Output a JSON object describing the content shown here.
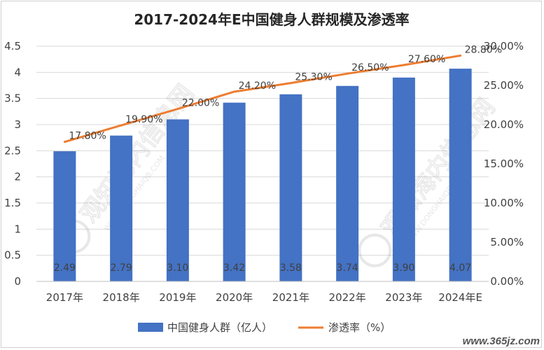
{
  "chart_data": {
    "type": "bar+line",
    "title": "2017-2024年E中国健身人群规模及渗透率",
    "categories": [
      "2017年",
      "2018年",
      "2019年",
      "2020年",
      "2021年",
      "2022年",
      "2023年",
      "2024年E"
    ],
    "series": [
      {
        "name": "中国健身人群（亿人）",
        "type": "bar",
        "axis": "left",
        "values": [
          2.49,
          2.79,
          3.1,
          3.42,
          3.58,
          3.74,
          3.9,
          4.07
        ],
        "labels": [
          "2.49",
          "2.79",
          "3.10",
          "3.42",
          "3.58",
          "3.74",
          "3.90",
          "4.07"
        ]
      },
      {
        "name": "渗透率（%）",
        "type": "line",
        "axis": "right",
        "values": [
          17.8,
          19.9,
          22.0,
          24.2,
          25.3,
          26.5,
          27.6,
          28.8
        ],
        "labels": [
          "17.80%",
          "19.90%",
          "22.00%",
          "24.20%",
          "25.30%",
          "26.50%",
          "27.60%",
          "28.80%"
        ]
      }
    ],
    "y_left": {
      "min": 0,
      "max": 4.5,
      "ticks": [
        "0",
        "0.5",
        "1",
        "1.5",
        "2",
        "2.5",
        "3",
        "3.5",
        "4",
        "4.5"
      ]
    },
    "y_right": {
      "min": 0,
      "max": 30,
      "ticks": [
        "0.00%",
        "5.00%",
        "10.00%",
        "15.00%",
        "20.00%",
        "25.00%",
        "30.00%"
      ]
    },
    "grid": true,
    "legend_position": "bottom"
  },
  "colors": {
    "bar": "#4472c4",
    "line": "#ed7d31",
    "grid": "#d9d9d9",
    "text": "#404040",
    "bar_label": "#404040"
  },
  "watermark": {
    "text": "观知海内信息网",
    "sub": "WWW.DONGHAIQB.COM"
  },
  "footer_mark": "www.365jz.com"
}
